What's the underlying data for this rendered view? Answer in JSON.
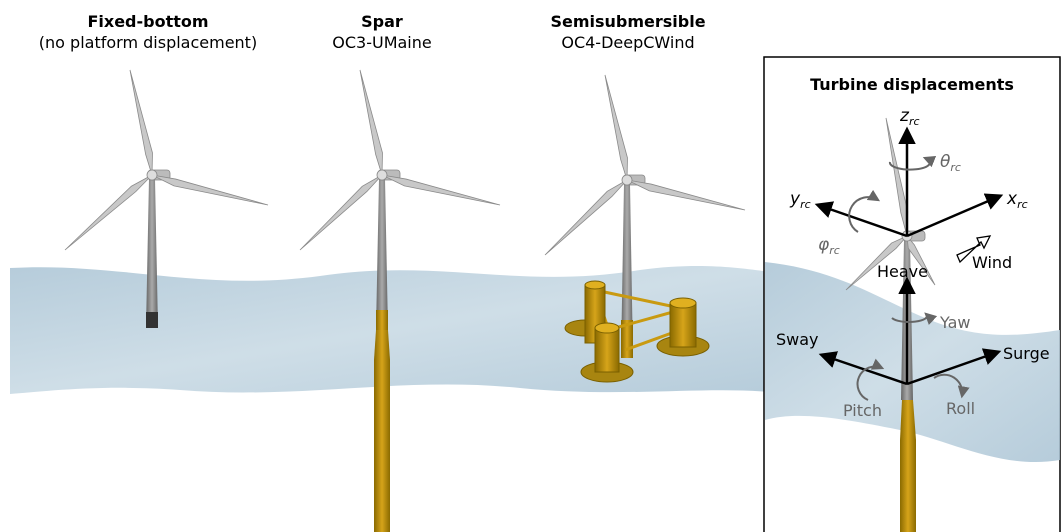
{
  "panels": [
    {
      "title": "Fixed-bottom",
      "subtitle": "(no platform displacement)"
    },
    {
      "title": "Spar",
      "subtitle": "OC3-UMaine"
    },
    {
      "title": "Semisubmersible",
      "subtitle": "OC4-DeepCWind"
    }
  ],
  "inset": {
    "title": "Turbine displacements",
    "rotor_axes": {
      "z": {
        "symbol": "z",
        "subscript": "rc"
      },
      "theta": {
        "symbol": "θ",
        "subscript": "rc"
      },
      "y": {
        "symbol": "y",
        "subscript": "rc"
      },
      "x": {
        "symbol": "x",
        "subscript": "rc"
      },
      "phi": {
        "symbol": "φ",
        "subscript": "rc"
      }
    },
    "wind": "Wind",
    "platform_motions": {
      "heave": "Heave",
      "yaw": "Yaw",
      "sway": "Sway",
      "surge": "Surge",
      "pitch": "Pitch",
      "roll": "Roll"
    }
  }
}
